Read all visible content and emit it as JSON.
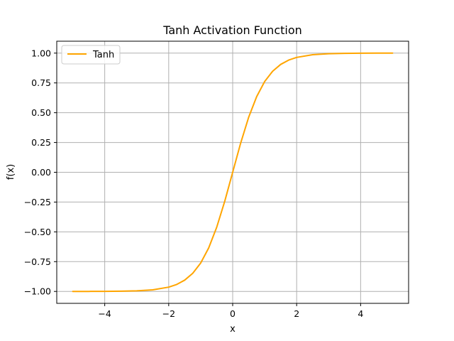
{
  "chart_data": {
    "type": "line",
    "title": "Tanh Activation Function",
    "xlabel": "x",
    "ylabel": "f(x)",
    "xlim": [
      -5.5,
      5.5
    ],
    "ylim": [
      -1.1,
      1.1
    ],
    "xticks": [
      -4,
      -2,
      0,
      2,
      4
    ],
    "xtick_labels": [
      "−4",
      "−2",
      "0",
      "2",
      "4"
    ],
    "yticks": [
      -1.0,
      -0.75,
      -0.5,
      -0.25,
      0.0,
      0.25,
      0.5,
      0.75,
      1.0
    ],
    "ytick_labels": [
      "−1.00",
      "−0.75",
      "−0.50",
      "−0.25",
      "0.00",
      "0.25",
      "0.50",
      "0.75",
      "1.00"
    ],
    "grid": true,
    "legend": {
      "placement": "upper-left"
    },
    "series": [
      {
        "name": "Tanh",
        "color": "#ffa500",
        "x": [
          -5,
          -4.5,
          -4,
          -3.5,
          -3,
          -2.5,
          -2,
          -1.75,
          -1.5,
          -1.25,
          -1,
          -0.75,
          -0.5,
          -0.25,
          0,
          0.25,
          0.5,
          0.75,
          1,
          1.25,
          1.5,
          1.75,
          2,
          2.5,
          3,
          3.5,
          4,
          4.5,
          5
        ],
        "y": [
          -0.9999,
          -0.9998,
          -0.9993,
          -0.9982,
          -0.9951,
          -0.9866,
          -0.964,
          -0.9414,
          -0.9051,
          -0.8483,
          -0.7616,
          -0.6351,
          -0.4621,
          -0.2449,
          0.0,
          0.2449,
          0.4621,
          0.6351,
          0.7616,
          0.8483,
          0.9051,
          0.9414,
          0.964,
          0.9866,
          0.9951,
          0.9982,
          0.9993,
          0.9998,
          0.9999
        ]
      }
    ]
  }
}
